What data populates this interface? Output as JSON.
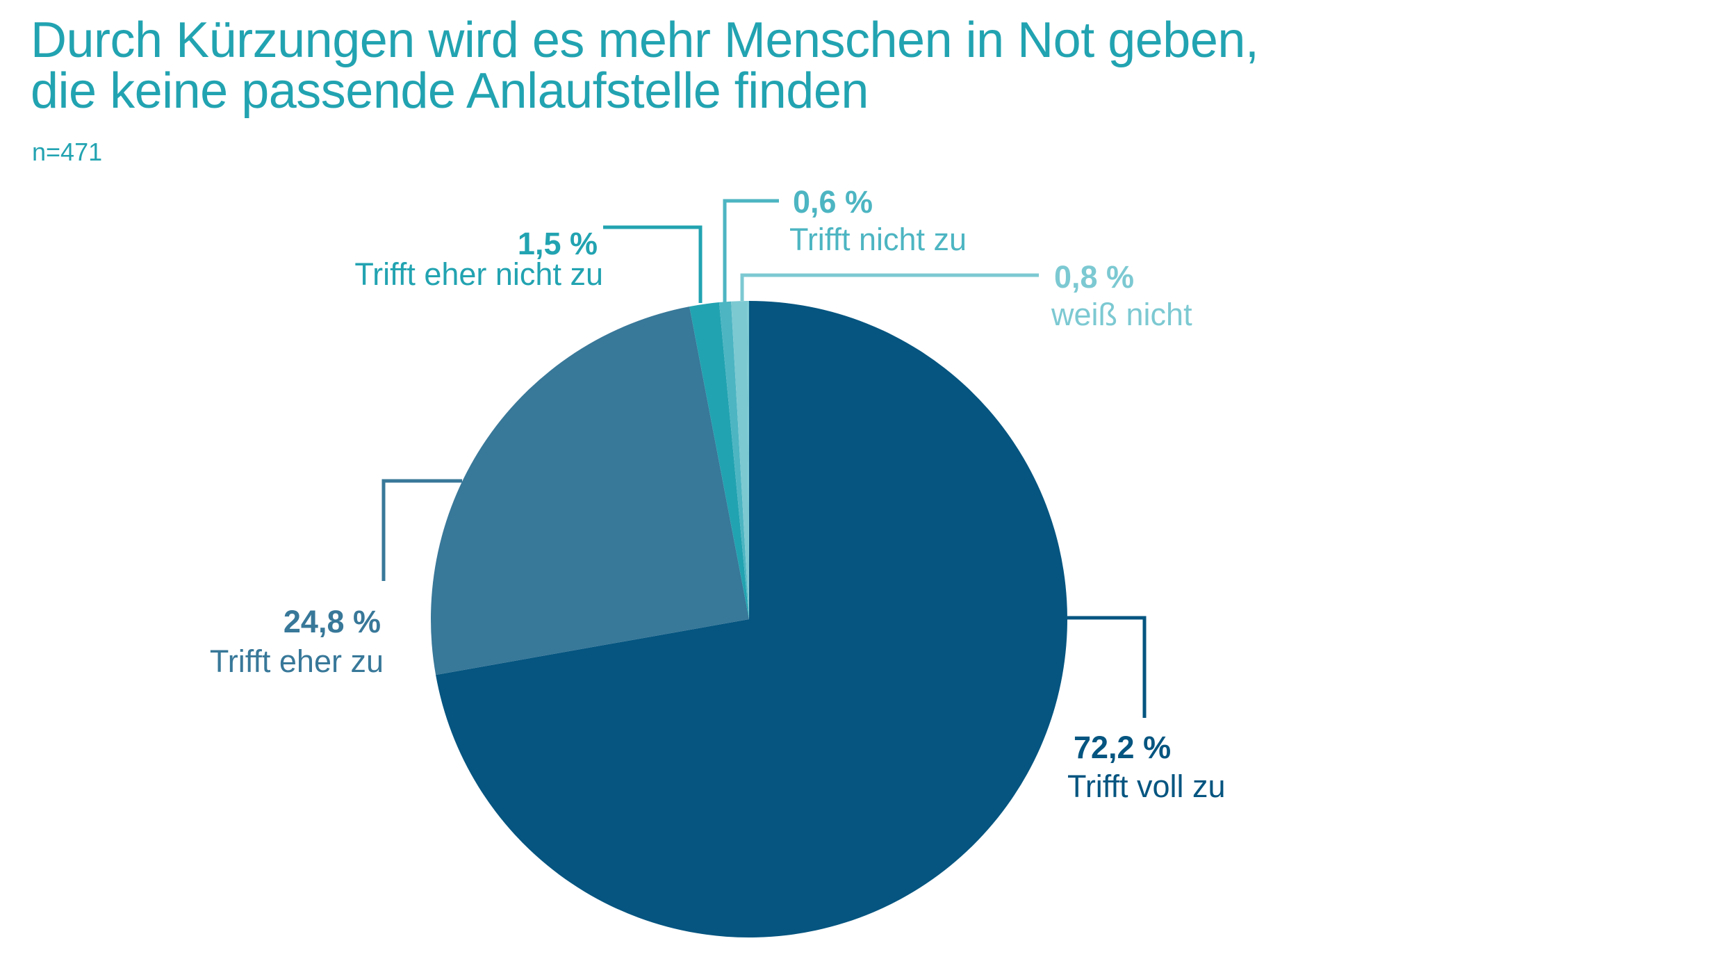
{
  "chart_data": {
    "type": "pie",
    "title": "Durch Kürzungen wird es mehr Menschen in Not geben, die keine passende Anlaufstelle finden",
    "title_lines": [
      "Durch Kürzungen wird es mehr Menschen in Not geben,",
      "die keine passende Anlaufstelle finden"
    ],
    "subtitle": "n=471",
    "start": "top, clockwise",
    "slices": [
      {
        "label": "Trifft voll zu",
        "value": 72.2,
        "value_label": "72,2 %",
        "color": "#055580"
      },
      {
        "label": "Trifft eher zu",
        "value": 24.8,
        "value_label": "24,8 %",
        "color": "#387899"
      },
      {
        "label": "Trifft eher nicht zu",
        "value": 1.5,
        "value_label": "1,5 %",
        "color": "#22A3B1"
      },
      {
        "label": "Trifft nicht zu",
        "value": 0.6,
        "value_label": "0,6 %",
        "color": "#4DB5C2"
      },
      {
        "label": "weiß nicht",
        "value": 0.8,
        "value_label": "0,8 %",
        "color": "#7CC9D2"
      }
    ]
  }
}
